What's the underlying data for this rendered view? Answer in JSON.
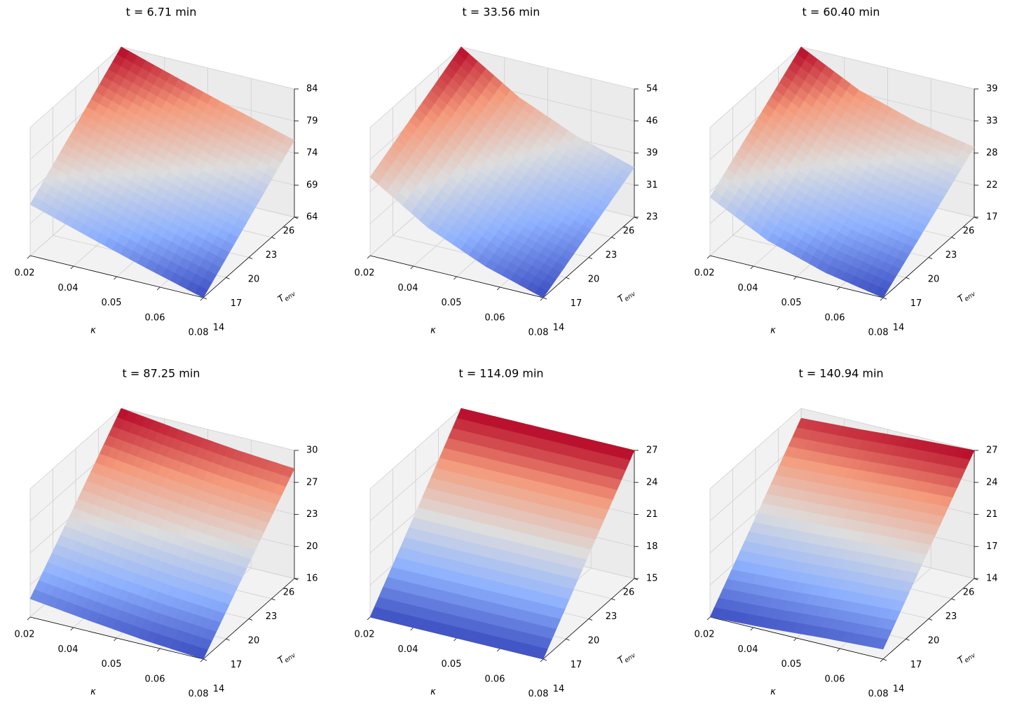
{
  "chart_data": [
    {
      "type": "surface",
      "title": "t = 6.71 min",
      "xlabel": "κ",
      "ylabel": "T",
      "ylabel_sub": "env",
      "colormap": "coolwarm",
      "xlim": [
        0.02,
        0.08
      ],
      "ylim": [
        14,
        26
      ],
      "zlim": [
        64,
        84
      ],
      "xticks": [
        0.02,
        {
          "value": 0.035,
          "label": "0.04"
        },
        0.05,
        {
          "value": 0.065,
          "label": "0.06"
        },
        0.08
      ],
      "yticks": [
        14,
        17,
        20,
        23,
        26
      ],
      "zticks": [
        64,
        69,
        74,
        79,
        84
      ],
      "x": [
        0.02,
        0.04,
        0.06,
        0.08
      ],
      "y": [
        14,
        18,
        22,
        26
      ],
      "z": [
        [
          72.0,
          69.2,
          66.5,
          64.0
        ],
        [
          76.0,
          73.2,
          70.5,
          68.0
        ],
        [
          80.0,
          77.2,
          74.5,
          72.0
        ],
        [
          84.0,
          81.2,
          78.5,
          76.0
        ]
      ]
    },
    {
      "type": "surface",
      "title": "t = 33.56 min",
      "xlabel": "κ",
      "ylabel": "T",
      "ylabel_sub": "env",
      "colormap": "coolwarm",
      "xlim": [
        0.02,
        0.08
      ],
      "ylim": [
        14,
        26
      ],
      "zlim": [
        23,
        54
      ],
      "xticks": [
        0.02,
        {
          "value": 0.035,
          "label": "0.04"
        },
        0.05,
        {
          "value": 0.065,
          "label": "0.06"
        },
        0.08
      ],
      "yticks": [
        14,
        17,
        20,
        23,
        26
      ],
      "zticks": [
        23,
        {
          "value": 30.75,
          "label": "31"
        },
        {
          "value": 38.5,
          "label": "39"
        },
        {
          "value": 46.25,
          "label": "46"
        },
        54
      ],
      "x": [
        0.02,
        0.04,
        0.06,
        0.08
      ],
      "y": [
        14,
        18,
        22,
        26
      ],
      "z": [
        [
          42.0,
          33.2,
          27.2,
          23.0
        ],
        [
          46.0,
          37.2,
          31.2,
          27.0
        ],
        [
          50.0,
          41.2,
          35.2,
          31.0
        ],
        [
          54.0,
          45.2,
          39.2,
          35.0
        ]
      ]
    },
    {
      "type": "surface",
      "title": "t = 60.40 min",
      "xlabel": "κ",
      "ylabel": "T",
      "ylabel_sub": "env",
      "colormap": "coolwarm",
      "xlim": [
        0.02,
        0.08
      ],
      "ylim": [
        14,
        26
      ],
      "zlim": [
        17,
        39
      ],
      "xticks": [
        0.02,
        {
          "value": 0.035,
          "label": "0.04"
        },
        0.05,
        {
          "value": 0.065,
          "label": "0.06"
        },
        0.08
      ],
      "yticks": [
        14,
        17,
        20,
        23,
        26
      ],
      "zticks": [
        17,
        {
          "value": 22.5,
          "label": "22"
        },
        28,
        {
          "value": 33.5,
          "label": "33"
        },
        39
      ],
      "x": [
        0.02,
        0.04,
        0.06,
        0.08
      ],
      "y": [
        14,
        18,
        22,
        26
      ],
      "z": [
        [
          27.0,
          22.0,
          18.9,
          17.0
        ],
        [
          31.0,
          26.0,
          22.9,
          21.0
        ],
        [
          35.0,
          30.0,
          26.9,
          25.0
        ],
        [
          39.0,
          34.0,
          30.9,
          29.0
        ]
      ]
    },
    {
      "type": "surface",
      "title": "t = 87.25 min",
      "xlabel": "κ",
      "ylabel": "T",
      "ylabel_sub": "env",
      "colormap": "coolwarm",
      "xlim": [
        0.02,
        0.08
      ],
      "ylim": [
        14,
        26
      ],
      "zlim": [
        16,
        30
      ],
      "xticks": [
        0.02,
        {
          "value": 0.035,
          "label": "0.04"
        },
        0.05,
        {
          "value": 0.065,
          "label": "0.06"
        },
        0.08
      ],
      "yticks": [
        14,
        17,
        20,
        23,
        26
      ],
      "zticks": [
        16,
        {
          "value": 19.5,
          "label": "20"
        },
        23,
        {
          "value": 26.5,
          "label": "27"
        },
        30
      ],
      "x": [
        0.02,
        0.04,
        0.06,
        0.08
      ],
      "y": [
        14,
        18,
        22,
        26
      ],
      "z": [
        [
          18.0,
          17.2,
          16.5,
          16.0
        ],
        [
          22.0,
          21.2,
          20.5,
          20.0
        ],
        [
          26.0,
          25.2,
          24.5,
          24.0
        ],
        [
          30.0,
          29.2,
          28.5,
          28.0
        ]
      ]
    },
    {
      "type": "surface",
      "title": "t = 114.09 min",
      "xlabel": "κ",
      "ylabel": "T",
      "ylabel_sub": "env",
      "colormap": "coolwarm",
      "xlim": [
        0.02,
        0.08
      ],
      "ylim": [
        14,
        26
      ],
      "zlim": [
        15,
        27
      ],
      "xticks": [
        0.02,
        {
          "value": 0.035,
          "label": "0.04"
        },
        0.05,
        {
          "value": 0.065,
          "label": "0.06"
        },
        0.08
      ],
      "yticks": [
        14,
        17,
        20,
        23,
        26
      ],
      "zticks": [
        15,
        18,
        21,
        24,
        27
      ],
      "x": [
        0.02,
        0.04,
        0.06,
        0.08
      ],
      "y": [
        14,
        18,
        22,
        26
      ],
      "z": [
        [
          15.0,
          15.0,
          15.0,
          15.0
        ],
        [
          19.0,
          19.0,
          19.0,
          19.0
        ],
        [
          23.0,
          23.0,
          23.0,
          23.0
        ],
        [
          27.0,
          27.0,
          27.0,
          27.0
        ]
      ]
    },
    {
      "type": "surface",
      "title": "t = 140.94 min",
      "xlabel": "κ",
      "ylabel": "T",
      "ylabel_sub": "env",
      "colormap": "coolwarm",
      "xlim": [
        0.02,
        0.08
      ],
      "ylim": [
        14,
        26
      ],
      "zlim": [
        14,
        27
      ],
      "xticks": [
        0.02,
        {
          "value": 0.035,
          "label": "0.04"
        },
        0.05,
        {
          "value": 0.065,
          "label": "0.06"
        },
        0.08
      ],
      "yticks": [
        14,
        17,
        20,
        23,
        26
      ],
      "zticks": [
        14,
        {
          "value": 17.25,
          "label": "17"
        },
        {
          "value": 20.5,
          "label": "21"
        },
        {
          "value": 23.75,
          "label": "24"
        },
        27
      ],
      "x": [
        0.02,
        0.04,
        0.06,
        0.08
      ],
      "y": [
        14,
        18,
        22,
        26
      ],
      "z": [
        [
          14.0,
          14.3,
          14.7,
          15.0
        ],
        [
          18.0,
          18.3,
          18.7,
          19.0
        ],
        [
          22.0,
          22.3,
          22.7,
          23.0
        ],
        [
          26.0,
          26.3,
          26.7,
          27.0
        ]
      ]
    }
  ]
}
